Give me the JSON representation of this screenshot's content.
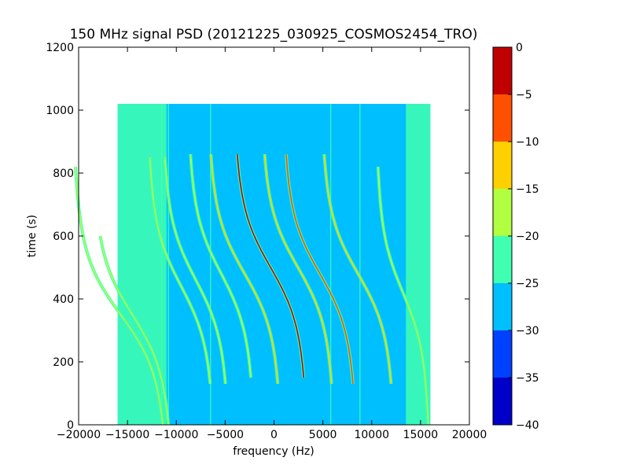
{
  "chart_data": {
    "type": "heatmap",
    "title": "150 MHz signal PSD (20121225_030925_COSMOS2454_TRO)",
    "xlabel": "frequency (Hz)",
    "ylabel": "time (s)",
    "xlim": [
      -20000,
      20000
    ],
    "ylim": [
      0,
      1200
    ],
    "x_ticks": [
      -20000,
      -15000,
      -10000,
      -5000,
      0,
      5000,
      10000,
      15000,
      20000
    ],
    "x_tick_labels": [
      "−20000",
      "−15000",
      "−10000",
      "−5000",
      "0",
      "5000",
      "10000",
      "15000",
      "20000"
    ],
    "y_ticks": [
      0,
      200,
      400,
      600,
      800,
      1000,
      1200
    ],
    "y_tick_labels": [
      "0",
      "200",
      "400",
      "600",
      "800",
      "1000",
      "1200"
    ],
    "data_extent": {
      "x": [
        -16000,
        16000
      ],
      "y": [
        0,
        1020
      ]
    },
    "colorbar": {
      "range": [
        -40,
        0
      ],
      "ticks": [
        0,
        -5,
        -10,
        -15,
        -20,
        -25,
        -30,
        -35,
        -40
      ],
      "tick_labels": [
        "0",
        "−5",
        "−10",
        "−15",
        "−20",
        "−25",
        "−30",
        "−35",
        "−40"
      ],
      "levels": [
        {
          "from": -40,
          "to": -35,
          "color": "#0000c8"
        },
        {
          "from": -35,
          "to": -30,
          "color": "#0040ff"
        },
        {
          "from": -30,
          "to": -25,
          "color": "#00bfff"
        },
        {
          "from": -25,
          "to": -20,
          "color": "#40ffb0"
        },
        {
          "from": -20,
          "to": -15,
          "color": "#b0ff40"
        },
        {
          "from": -15,
          "to": -10,
          "color": "#ffd000"
        },
        {
          "from": -10,
          "to": -5,
          "color": "#ff5000"
        },
        {
          "from": -5,
          "to": 0,
          "color": "#c00000"
        }
      ]
    },
    "background_level": -27,
    "edge_bands": [
      {
        "x": [
          -16000,
          -11000
        ],
        "level": -22
      },
      {
        "x": [
          13500,
          16000
        ],
        "level": -22
      }
    ],
    "vertical_lines": [
      {
        "x": -11500,
        "level": -22
      },
      {
        "x": -10800,
        "level": -22
      },
      {
        "x": -6500,
        "level": -22
      },
      {
        "x": 5800,
        "level": -22
      },
      {
        "x": 8800,
        "level": -22
      }
    ],
    "doppler_traces": [
      {
        "x0": -350,
        "t_start": 860,
        "t_end": 150,
        "t_center": 500,
        "shift": 11000,
        "level": -3
      },
      {
        "x0": 2450,
        "t_start": 860,
        "t_end": 130,
        "t_center": 500,
        "shift": 11000,
        "level": -12
      },
      {
        "x0": 4700,
        "t_start": 860,
        "t_end": 130,
        "t_center": 480,
        "shift": 11000,
        "level": -5
      },
      {
        "x0": 8600,
        "t_start": 860,
        "t_end": 130,
        "t_center": 480,
        "shift": 11000,
        "level": -12
      },
      {
        "x0": -3000,
        "t_start": 860,
        "t_end": 130,
        "t_center": 480,
        "shift": 11000,
        "level": -10
      },
      {
        "x0": -5400,
        "t_start": 860,
        "t_end": 150,
        "t_center": 480,
        "shift": 10000,
        "level": -15
      },
      {
        "x0": -8000,
        "t_start": 850,
        "t_end": 130,
        "t_center": 460,
        "shift": 10000,
        "level": -18
      },
      {
        "x0": -9500,
        "t_start": 850,
        "t_end": 130,
        "t_center": 440,
        "shift": 10000,
        "level": -18
      },
      {
        "x0": -14500,
        "t_start": 600,
        "t_end": 0,
        "t_center": 350,
        "shift": 12000,
        "level": -15
      },
      {
        "x0": -15700,
        "t_start": 820,
        "t_end": 0,
        "t_center": 350,
        "shift": 14000,
        "level": -15
      },
      {
        "x0": 13200,
        "t_start": 820,
        "t_end": 0,
        "t_center": 420,
        "shift": 8000,
        "level": -15
      }
    ]
  }
}
